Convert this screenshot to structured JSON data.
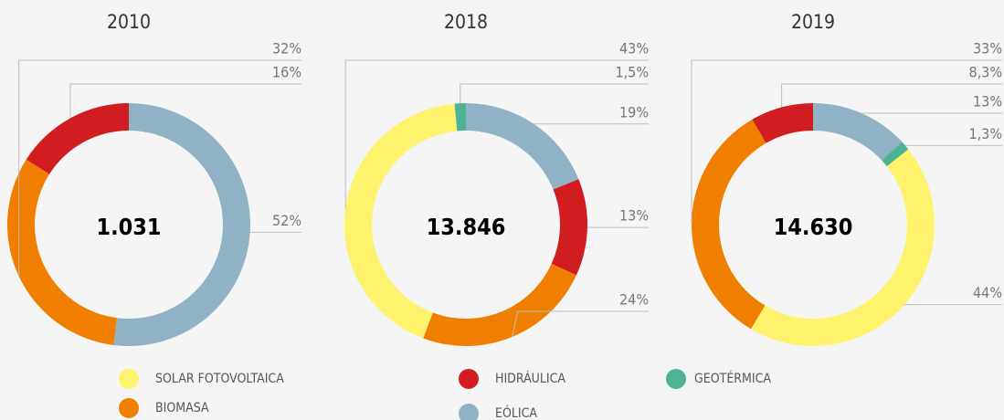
{
  "legend": {
    "categories": [
      "SOLAR FOTOVOLTAICA",
      "BIOMASA",
      "HIDRÁULICA",
      "EÓLICA",
      "GEOTÉRMICA"
    ],
    "colors": [
      "#fff36d",
      "#f07f00",
      "#d11c20",
      "#8fb2c5",
      "#4db394"
    ]
  },
  "chart_data": [
    {
      "type": "donut",
      "title": "2010",
      "center_text": "1.031",
      "categories": [
        "EÓLICA",
        "BIOMASA",
        "HIDRÁULICA"
      ],
      "values": [
        52,
        32,
        16
      ],
      "value_labels": [
        "52%",
        "32%",
        "16%"
      ]
    },
    {
      "type": "donut",
      "title": "2018",
      "center_text": "13.846",
      "categories": [
        "EÓLICA",
        "HIDRÁULICA",
        "BIOMASA",
        "SOLAR FOTOVOLTAICA",
        "GEOTÉRMICA"
      ],
      "values": [
        19,
        13,
        24,
        43,
        1.5
      ],
      "value_labels": [
        "19%",
        "13%",
        "24%",
        "43%",
        "1,5%"
      ]
    },
    {
      "type": "donut",
      "title": "2019",
      "center_text": "14.630",
      "categories": [
        "EÓLICA",
        "GEOTÉRMICA",
        "SOLAR FOTOVOLTAICA",
        "BIOMASA",
        "HIDRÁULICA"
      ],
      "values": [
        13,
        1.3,
        44,
        33,
        8.3
      ],
      "value_labels": [
        "13%",
        "1,3%",
        "44%",
        "33%",
        "8,3%"
      ]
    }
  ]
}
